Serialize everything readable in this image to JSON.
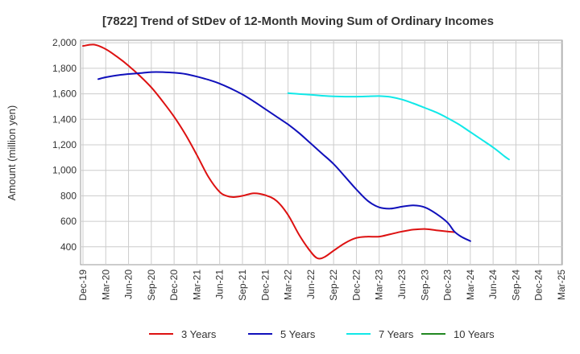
{
  "chart_data": {
    "type": "line",
    "title": "[7822]  Trend of StDev of 12-Month Moving Sum of Ordinary Incomes",
    "ylabel": "Amount (million yen)",
    "xlabel": "",
    "x_ticks": [
      "Dec-19",
      "Mar-20",
      "Jun-20",
      "Sep-20",
      "Dec-20",
      "Mar-21",
      "Jun-21",
      "Sep-21",
      "Dec-21",
      "Mar-22",
      "Jun-22",
      "Sep-22",
      "Dec-22",
      "Mar-23",
      "Jun-23",
      "Sep-23",
      "Dec-23",
      "Mar-24",
      "Jun-24",
      "Sep-24",
      "Dec-24",
      "Mar-25"
    ],
    "y_ticks": [
      "400",
      "600",
      "800",
      "1,000",
      "1,200",
      "1,400",
      "1,600",
      "1,800",
      "2,000"
    ],
    "ylim": [
      260,
      2020
    ],
    "grid": true,
    "legend_position": "bottom",
    "series": [
      {
        "name": "3 Years",
        "color": "#dd1111",
        "points": [
          [
            0,
            1975
          ],
          [
            0.5,
            1985
          ],
          [
            1,
            1950
          ],
          [
            1.5,
            1890
          ],
          [
            2,
            1820
          ],
          [
            2.5,
            1740
          ],
          [
            3,
            1650
          ],
          [
            3.5,
            1540
          ],
          [
            4,
            1420
          ],
          [
            4.5,
            1280
          ],
          [
            5,
            1120
          ],
          [
            5.5,
            950
          ],
          [
            6,
            830
          ],
          [
            6.3,
            800
          ],
          [
            6.6,
            790
          ],
          [
            7,
            800
          ],
          [
            7.5,
            820
          ],
          [
            8,
            805
          ],
          [
            8.5,
            760
          ],
          [
            9,
            650
          ],
          [
            9.5,
            490
          ],
          [
            10,
            360
          ],
          [
            10.3,
            310
          ],
          [
            10.6,
            320
          ],
          [
            11,
            370
          ],
          [
            11.5,
            430
          ],
          [
            12,
            470
          ],
          [
            12.5,
            480
          ],
          [
            13,
            480
          ],
          [
            13.5,
            500
          ],
          [
            14,
            520
          ],
          [
            14.5,
            535
          ],
          [
            15,
            540
          ],
          [
            15.5,
            530
          ],
          [
            16,
            520
          ],
          [
            16.3,
            515
          ]
        ]
      },
      {
        "name": "5 Years",
        "color": "#1010bb",
        "points": [
          [
            0.67,
            1715
          ],
          [
            1,
            1730
          ],
          [
            1.5,
            1745
          ],
          [
            2,
            1755
          ],
          [
            2.5,
            1762
          ],
          [
            3,
            1770
          ],
          [
            3.5,
            1770
          ],
          [
            4,
            1765
          ],
          [
            4.5,
            1755
          ],
          [
            5,
            1735
          ],
          [
            5.5,
            1710
          ],
          [
            6,
            1680
          ],
          [
            6.5,
            1640
          ],
          [
            7,
            1595
          ],
          [
            7.5,
            1540
          ],
          [
            8,
            1480
          ],
          [
            8.5,
            1420
          ],
          [
            9,
            1360
          ],
          [
            9.5,
            1290
          ],
          [
            10,
            1210
          ],
          [
            10.5,
            1130
          ],
          [
            11,
            1050
          ],
          [
            11.5,
            950
          ],
          [
            12,
            850
          ],
          [
            12.5,
            760
          ],
          [
            13,
            710
          ],
          [
            13.5,
            700
          ],
          [
            14,
            715
          ],
          [
            14.5,
            725
          ],
          [
            15,
            710
          ],
          [
            15.5,
            660
          ],
          [
            16,
            590
          ],
          [
            16.3,
            520
          ],
          [
            16.6,
            480
          ],
          [
            17,
            445
          ]
        ]
      },
      {
        "name": "7 Years",
        "color": "#11e8e8",
        "points": [
          [
            9,
            1605
          ],
          [
            9.5,
            1598
          ],
          [
            10,
            1592
          ],
          [
            10.5,
            1585
          ],
          [
            11,
            1580
          ],
          [
            11.5,
            1578
          ],
          [
            12,
            1578
          ],
          [
            12.5,
            1580
          ],
          [
            13,
            1582
          ],
          [
            13.5,
            1575
          ],
          [
            14,
            1555
          ],
          [
            14.5,
            1525
          ],
          [
            15,
            1490
          ],
          [
            15.5,
            1455
          ],
          [
            16,
            1410
          ],
          [
            16.5,
            1360
          ],
          [
            17,
            1300
          ],
          [
            17.5,
            1240
          ],
          [
            18,
            1180
          ],
          [
            18.5,
            1110
          ],
          [
            18.7,
            1085
          ]
        ]
      },
      {
        "name": "10 Years",
        "color": "#228822",
        "points": []
      }
    ]
  }
}
